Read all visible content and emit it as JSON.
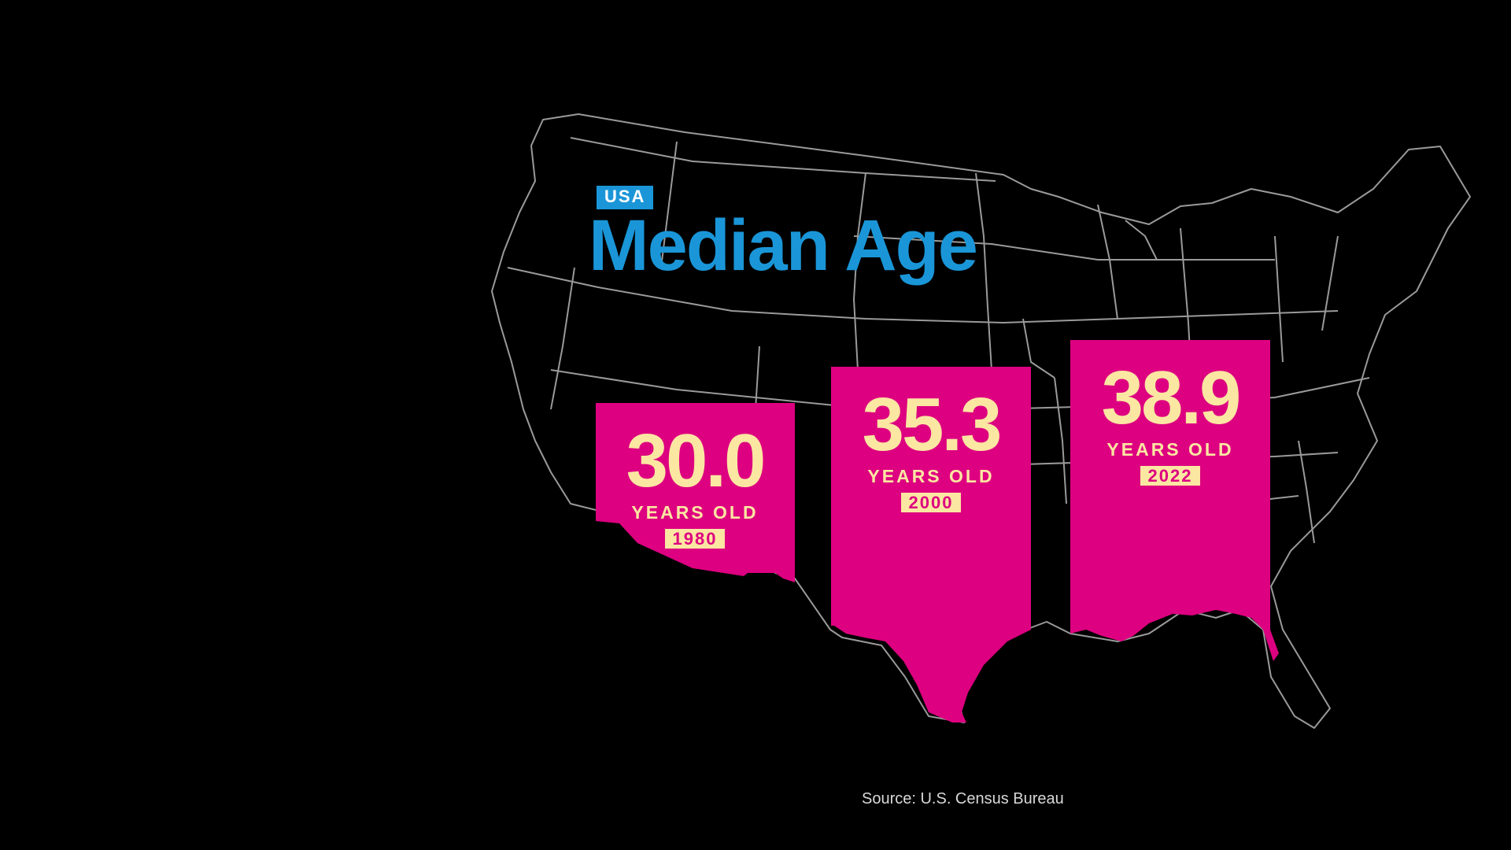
{
  "header": {
    "tag": "USA",
    "title": "Median Age"
  },
  "colors": {
    "background": "#000000",
    "accent_blue": "#1a96d8",
    "state_fill": "#dd0080",
    "number_text": "#fbe6a2",
    "map_outline": "#9a9a9a"
  },
  "chart_data": {
    "type": "bar",
    "title": "Median Age",
    "subtitle": "USA",
    "categories": [
      "1980",
      "2000",
      "2022"
    ],
    "values": [
      30.0,
      35.3,
      38.9
    ],
    "value_labels": [
      "30.0",
      "35.3",
      "38.9"
    ],
    "unit": "YEARS OLD",
    "grid": false,
    "legend": "none",
    "source": "Source: U.S. Census Bureau"
  },
  "icons": [
    "usa-map-outline",
    "arizona-state-shape",
    "texas-state-shape",
    "florida-state-shape"
  ]
}
